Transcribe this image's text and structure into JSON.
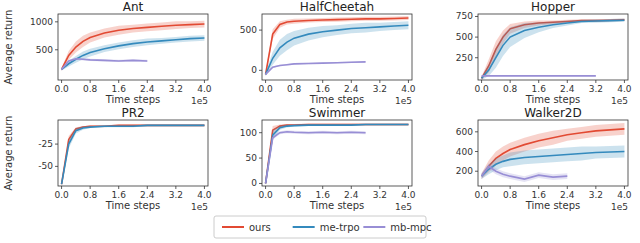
{
  "chart_data": [
    {
      "type": "line",
      "title": "Ant",
      "ylabel": "Average return",
      "xlabel": "Time steps",
      "x_exponent_label": "1e5",
      "x": [
        0,
        0.2,
        0.4,
        0.6,
        0.8,
        1.2,
        1.6,
        2.0,
        2.4,
        2.8,
        3.2,
        3.6,
        4.0
      ],
      "xlim": [
        -0.1,
        4.1
      ],
      "xticks": [
        {
          "value": 0,
          "label": "0.0"
        },
        {
          "value": 0.8,
          "label": "0.8"
        },
        {
          "value": 1.6,
          "label": "1.6"
        },
        {
          "value": 2.4,
          "label": "2.4"
        },
        {
          "value": 3.2,
          "label": "3.2"
        },
        {
          "value": 4.0,
          "label": "4.0"
        }
      ],
      "ylim": [
        -40,
        1140
      ],
      "yticks": [
        500,
        1000
      ],
      "grid": false,
      "legend": "bottom",
      "series": [
        {
          "name": "ours",
          "color": "#e24a33",
          "values": [
            150,
            400,
            550,
            650,
            720,
            800,
            850,
            880,
            900,
            920,
            940,
            950,
            960
          ],
          "std": [
            30,
            80,
            100,
            100,
            90,
            80,
            80,
            70,
            70,
            70,
            70,
            60,
            60
          ]
        },
        {
          "name": "me-trpo",
          "color": "#348abd",
          "values": [
            150,
            250,
            330,
            400,
            450,
            520,
            570,
            610,
            640,
            660,
            680,
            700,
            710
          ],
          "std": [
            20,
            50,
            60,
            70,
            70,
            60,
            60,
            60,
            60,
            50,
            50,
            50,
            50
          ]
        },
        {
          "name": "mb-mpc",
          "color": "#988ed5",
          "values": [
            150,
            300,
            340,
            330,
            320,
            310,
            300,
            310,
            300,
            null,
            null,
            null,
            null
          ],
          "std": [
            20,
            20,
            20,
            20,
            20,
            20,
            20,
            20,
            20,
            null,
            null,
            null,
            null
          ]
        }
      ]
    },
    {
      "type": "line",
      "title": "HalfCheetah",
      "xlabel": "Time steps",
      "x_exponent_label": "1e5",
      "x": [
        0,
        0.2,
        0.4,
        0.6,
        0.8,
        1.2,
        1.6,
        2.0,
        2.4,
        2.8,
        3.2,
        3.6,
        4.0
      ],
      "xlim": [
        -0.1,
        4.1
      ],
      "xticks": [
        {
          "value": 0,
          "label": "0.0"
        },
        {
          "value": 0.8,
          "label": "0.8"
        },
        {
          "value": 1.6,
          "label": "1.6"
        },
        {
          "value": 2.4,
          "label": "2.4"
        },
        {
          "value": 3.2,
          "label": "3.2"
        },
        {
          "value": 4.0,
          "label": "4.0"
        }
      ],
      "ylim": [
        -120,
        700
      ],
      "yticks": [
        0,
        500
      ],
      "grid": false,
      "series": [
        {
          "color": "#e24a33",
          "values": [
            -50,
            450,
            570,
            600,
            610,
            620,
            625,
            630,
            635,
            640,
            640,
            645,
            650
          ],
          "std": [
            20,
            60,
            40,
            30,
            30,
            25,
            25,
            25,
            25,
            25,
            25,
            25,
            25
          ]
        },
        {
          "color": "#348abd",
          "values": [
            -50,
            150,
            280,
            350,
            400,
            450,
            480,
            500,
            520,
            530,
            540,
            550,
            560
          ],
          "std": [
            20,
            80,
            100,
            100,
            90,
            80,
            70,
            60,
            60,
            60,
            50,
            50,
            50
          ]
        },
        {
          "color": "#988ed5",
          "values": [
            -50,
            40,
            60,
            70,
            80,
            85,
            90,
            95,
            100,
            105,
            null,
            null,
            null
          ],
          "std": [
            10,
            10,
            10,
            10,
            10,
            10,
            10,
            10,
            10,
            10,
            null,
            null,
            null
          ]
        }
      ]
    },
    {
      "type": "line",
      "title": "Hopper",
      "xlabel": "Time steps",
      "x_exponent_label": "1e5",
      "x": [
        0,
        0.2,
        0.4,
        0.6,
        0.8,
        1.2,
        1.6,
        2.0,
        2.4,
        2.8,
        3.2,
        3.6,
        4.0
      ],
      "xlim": [
        -0.1,
        4.1
      ],
      "xticks": [
        {
          "value": 0,
          "label": "0.0"
        },
        {
          "value": 0.8,
          "label": "0.8"
        },
        {
          "value": 1.6,
          "label": "1.6"
        },
        {
          "value": 2.4,
          "label": "2.4"
        },
        {
          "value": 3.2,
          "label": "3.2"
        },
        {
          "value": 4.0,
          "label": "4.0"
        }
      ],
      "ylim": [
        -20,
        780
      ],
      "yticks": [
        250,
        500,
        750
      ],
      "grid": false,
      "series": [
        {
          "color": "#e24a33",
          "values": [
            0,
            150,
            350,
            500,
            600,
            650,
            670,
            680,
            690,
            700,
            700,
            705,
            710
          ],
          "std": [
            20,
            80,
            100,
            80,
            60,
            40,
            30,
            20,
            20,
            15,
            15,
            15,
            15
          ]
        },
        {
          "color": "#348abd",
          "values": [
            0,
            100,
            250,
            400,
            500,
            580,
            620,
            650,
            670,
            690,
            695,
            700,
            705
          ],
          "std": [
            20,
            70,
            120,
            130,
            120,
            90,
            60,
            40,
            30,
            20,
            20,
            20,
            20
          ]
        },
        {
          "color": "#988ed5",
          "values": [
            30,
            30,
            30,
            30,
            30,
            30,
            30,
            30,
            30,
            30,
            30,
            null,
            null
          ],
          "std": [
            5,
            5,
            5,
            5,
            5,
            5,
            5,
            5,
            5,
            5,
            5,
            null,
            null
          ]
        }
      ]
    },
    {
      "type": "line",
      "title": "PR2",
      "ylabel": "Average return",
      "xlabel": "Time steps",
      "x_exponent_label": "1e5",
      "x": [
        0,
        0.2,
        0.4,
        0.6,
        0.8,
        1.2,
        1.6,
        2.0,
        2.4,
        2.8,
        3.2,
        3.6,
        4.0
      ],
      "xlim": [
        -0.1,
        4.1
      ],
      "xticks": [
        {
          "value": 0,
          "label": "0.0"
        },
        {
          "value": 0.8,
          "label": "0.8"
        },
        {
          "value": 1.6,
          "label": "1.6"
        },
        {
          "value": 2.4,
          "label": "2.4"
        },
        {
          "value": 3.2,
          "label": "3.2"
        },
        {
          "value": 4.0,
          "label": "4.0"
        }
      ],
      "ylim": [
        -72,
        2
      ],
      "yticks": [
        -50,
        -25
      ],
      "grid": false,
      "series": [
        {
          "color": "#e24a33",
          "values": [
            -70,
            -20,
            -8,
            -6,
            -5,
            -5,
            -4,
            -4,
            -4,
            -4,
            -4,
            -4,
            -4
          ],
          "std": [
            3,
            4,
            2,
            1,
            1,
            1,
            1,
            1,
            1,
            1,
            1,
            1,
            1
          ]
        },
        {
          "color": "#348abd",
          "values": [
            -70,
            -25,
            -10,
            -7,
            -6,
            -5,
            -5,
            -5,
            -4,
            -4,
            -4,
            -4,
            -4
          ],
          "std": [
            3,
            5,
            3,
            2,
            1,
            1,
            1,
            1,
            1,
            1,
            1,
            1,
            1
          ]
        }
      ]
    },
    {
      "type": "line",
      "title": "Swimmer",
      "xlabel": "Time steps",
      "x_exponent_label": "1e5",
      "x": [
        0,
        0.2,
        0.4,
        0.6,
        0.8,
        1.2,
        1.6,
        2.0,
        2.4,
        2.8,
        3.2,
        3.6,
        4.0
      ],
      "xlim": [
        -0.1,
        4.1
      ],
      "xticks": [
        {
          "value": 0,
          "label": "0.0"
        },
        {
          "value": 0.8,
          "label": "0.8"
        },
        {
          "value": 1.6,
          "label": "1.6"
        },
        {
          "value": 2.4,
          "label": "2.4"
        },
        {
          "value": 3.2,
          "label": "3.2"
        },
        {
          "value": 4.0,
          "label": "4.0"
        }
      ],
      "ylim": [
        -5,
        125
      ],
      "yticks": [
        0,
        50,
        100
      ],
      "grid": false,
      "series": [
        {
          "color": "#e24a33",
          "values": [
            0,
            105,
            113,
            115,
            115,
            116,
            116,
            116,
            116,
            116,
            116,
            116,
            116
          ],
          "std": [
            2,
            8,
            3,
            2,
            2,
            2,
            2,
            2,
            2,
            2,
            2,
            2,
            2
          ]
        },
        {
          "color": "#348abd",
          "values": [
            0,
            95,
            110,
            113,
            114,
            115,
            115,
            115,
            115,
            116,
            116,
            116,
            116
          ],
          "std": [
            2,
            10,
            4,
            3,
            2,
            2,
            2,
            2,
            2,
            2,
            2,
            2,
            2
          ]
        },
        {
          "color": "#988ed5",
          "values": [
            0,
            90,
            100,
            102,
            101,
            100,
            101,
            100,
            101,
            100,
            null,
            null,
            null
          ],
          "std": [
            2,
            4,
            3,
            3,
            3,
            3,
            3,
            3,
            3,
            3,
            null,
            null,
            null
          ]
        }
      ]
    },
    {
      "type": "line",
      "title": "Walker2D",
      "xlabel": "Time steps",
      "x_exponent_label": "1e5",
      "x": [
        0,
        0.2,
        0.4,
        0.6,
        0.8,
        1.2,
        1.6,
        2.0,
        2.4,
        2.8,
        3.2,
        3.6,
        4.0
      ],
      "xlim": [
        -0.1,
        4.1
      ],
      "xticks": [
        {
          "value": 0,
          "label": "0.0"
        },
        {
          "value": 0.8,
          "label": "0.8"
        },
        {
          "value": 1.6,
          "label": "1.6"
        },
        {
          "value": 2.4,
          "label": "2.4"
        },
        {
          "value": 3.2,
          "label": "3.2"
        },
        {
          "value": 4.0,
          "label": "4.0"
        }
      ],
      "ylim": [
        50,
        720
      ],
      "yticks": [
        200,
        400,
        600
      ],
      "grid": false,
      "series": [
        {
          "color": "#e24a33",
          "values": [
            150,
            250,
            330,
            380,
            420,
            470,
            510,
            540,
            570,
            590,
            610,
            620,
            630
          ],
          "std": [
            30,
            60,
            70,
            70,
            70,
            70,
            70,
            70,
            60,
            60,
            60,
            60,
            60
          ]
        },
        {
          "color": "#348abd",
          "values": [
            150,
            220,
            270,
            300,
            320,
            340,
            350,
            360,
            370,
            380,
            390,
            395,
            400
          ],
          "std": [
            30,
            50,
            60,
            60,
            70,
            70,
            70,
            70,
            70,
            70,
            60,
            60,
            60
          ]
        },
        {
          "color": "#988ed5",
          "values": [
            150,
            250,
            200,
            170,
            150,
            120,
            160,
            140,
            150,
            null,
            null,
            null,
            null
          ],
          "std": [
            30,
            30,
            30,
            30,
            30,
            30,
            30,
            30,
            30,
            null,
            null,
            null,
            null
          ]
        }
      ]
    }
  ]
}
